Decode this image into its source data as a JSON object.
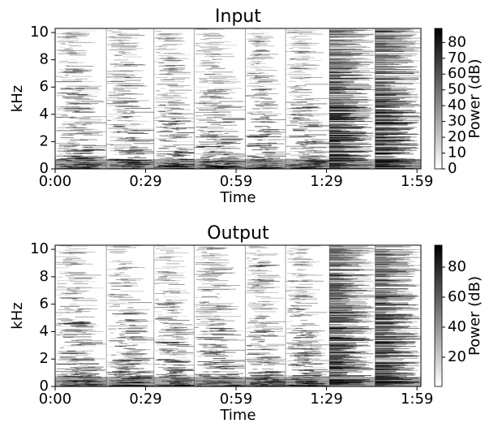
{
  "chart_data": [
    {
      "type": "spectrogram",
      "title": "Input",
      "x_label": "Time",
      "y_label": "kHz",
      "xlim": [
        0,
        120.5
      ],
      "xticks": [
        {
          "value": 0,
          "label": "0:00"
        },
        {
          "value": 29.8,
          "label": "0:29"
        },
        {
          "value": 59.6,
          "label": "0:59"
        },
        {
          "value": 89.4,
          "label": "1:29"
        },
        {
          "value": 119.2,
          "label": "1:59"
        }
      ],
      "ylim": [
        0,
        10.3
      ],
      "yticks": [
        0,
        2,
        4,
        6,
        8,
        10
      ],
      "colormap": [
        "#ffffff",
        "#000000"
      ],
      "colorbar": {
        "label": "Power (dB)",
        "lim": [
          0,
          88.9
        ],
        "ticks": [
          0,
          10,
          20,
          30,
          40,
          50,
          60,
          70,
          80
        ]
      }
    },
    {
      "type": "spectrogram",
      "title": "Output",
      "x_label": "Time",
      "y_label": "kHz",
      "xlim": [
        0,
        120.5
      ],
      "xticks": [
        {
          "value": 0,
          "label": "0:00"
        },
        {
          "value": 29.8,
          "label": "0:29"
        },
        {
          "value": 59.6,
          "label": "0:59"
        },
        {
          "value": 89.4,
          "label": "1:29"
        },
        {
          "value": 119.2,
          "label": "1:59"
        }
      ],
      "ylim": [
        0,
        10.3
      ],
      "yticks": [
        0,
        2,
        4,
        6,
        8,
        10
      ],
      "colormap": [
        "#ffffff",
        "#000000"
      ],
      "colorbar": {
        "label": "Power (dB)",
        "lim": [
          0.5,
          94.6
        ],
        "ticks": [
          20,
          40,
          60,
          80
        ]
      }
    }
  ]
}
